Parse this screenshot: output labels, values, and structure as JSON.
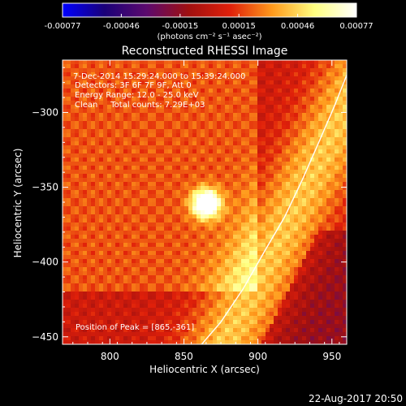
{
  "chart_data": {
    "type": "heatmap",
    "title": "Reconstructed RHESSI Image",
    "xlabel": "Heliocentric X (arcsec)",
    "ylabel": "Heliocentric Y (arcsec)",
    "xlim": [
      768,
      960
    ],
    "ylim": [
      -455,
      -265
    ],
    "xticks": [
      800,
      850,
      900,
      950
    ],
    "yticks": [
      -300,
      -350,
      -400,
      -450
    ],
    "colorbar": {
      "min": -0.00077,
      "max": 0.00077,
      "ticks": [
        "-0.00077",
        "-0.00046",
        "-0.00015",
        "0.00015",
        "0.00046",
        "0.00077"
      ],
      "colors": [
        "#0000ff",
        "#1a0078",
        "#5c0a6e",
        "#a01010",
        "#e0200a",
        "#ff9a1c",
        "#ffff80",
        "#ffffff"
      ]
    },
    "units": "(photons cm⁻² s⁻¹ asec⁻²)",
    "annotations": [
      "7-Dec-2014 15:29:24.000 to 15:39:24.000",
      "Detectors: 3F 6F 7F 9F, Att 0",
      "Energy Range: 12.0 - 25.0 keV",
      "Clean     Total counts: 7.29E+03"
    ],
    "peak_label": "Position of Peak = [865,-361]",
    "peak": [
      865,
      -361
    ],
    "limb_curve": [
      [
        862,
        -455
      ],
      [
        875,
        -440
      ],
      [
        890,
        -418
      ],
      [
        905,
        -392
      ],
      [
        918,
        -370
      ],
      [
        930,
        -345
      ],
      [
        942,
        -318
      ],
      [
        952,
        -295
      ],
      [
        960,
        -275
      ],
      [
        963,
        -265
      ]
    ],
    "timestamp": "22-Aug-2017 20:50"
  }
}
